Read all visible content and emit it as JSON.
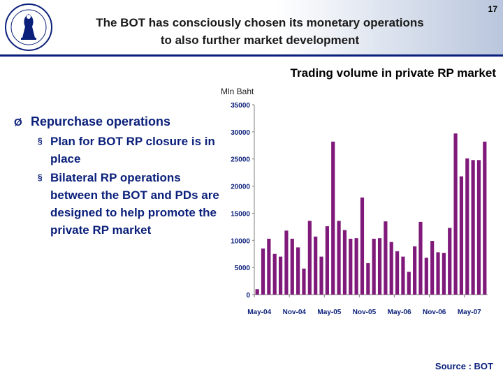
{
  "header": {
    "title_line1": "The BOT has consciously chosen its monetary operations",
    "title_line2": "to also further market development",
    "page_number": "17"
  },
  "bullets": {
    "main_marker": "Ø",
    "main": "Repurchase operations",
    "sub_marker": "§",
    "items": [
      "Plan for BOT RP closure is in place",
      "Bilateral RP operations between the BOT and PDs are designed to help promote the private RP market"
    ]
  },
  "source": "Source : BOT",
  "colors": {
    "bar": "#7f1a7a",
    "accent": "#0a1f7a"
  },
  "chart_data": {
    "type": "bar",
    "title": "Trading volume in private RP market",
    "ylabel": "Mln Baht",
    "xlabel": "",
    "ylim": [
      0,
      35000
    ],
    "y_ticks": [
      "0",
      "5000",
      "10000",
      "15000",
      "20000",
      "25000",
      "30000",
      "35000"
    ],
    "x_tick_labels": [
      "May-04",
      "Nov-04",
      "May-05",
      "Nov-05",
      "May-06",
      "Nov-06",
      "May-07"
    ],
    "categories": [
      "May-04",
      "Jun-04",
      "Jul-04",
      "Aug-04",
      "Sep-04",
      "Oct-04",
      "Nov-04",
      "Dec-04",
      "Jan-05",
      "Feb-05",
      "Mar-05",
      "Apr-05",
      "May-05",
      "Jun-05",
      "Jul-05",
      "Aug-05",
      "Sep-05",
      "Oct-05",
      "Nov-05",
      "Dec-05",
      "Jan-06",
      "Feb-06",
      "Mar-06",
      "Apr-06",
      "May-06",
      "Jun-06",
      "Jul-06",
      "Aug-06",
      "Sep-06",
      "Oct-06",
      "Nov-06",
      "Dec-06",
      "Jan-07",
      "Feb-07",
      "Mar-07",
      "Apr-07",
      "May-07",
      "Jun-07",
      "Jul-07",
      "Aug-07"
    ],
    "values": [
      1000,
      8500,
      10300,
      7500,
      7000,
      11800,
      10300,
      8700,
      4800,
      13600,
      10700,
      7000,
      12600,
      28200,
      13600,
      11900,
      10300,
      10400,
      17900,
      5800,
      10300,
      10400,
      13500,
      9700,
      8000,
      7000,
      4200,
      8900,
      13400,
      6800,
      9900,
      7800,
      7700,
      12300,
      29700,
      21800,
      25100,
      24800,
      24800,
      28200
    ]
  }
}
